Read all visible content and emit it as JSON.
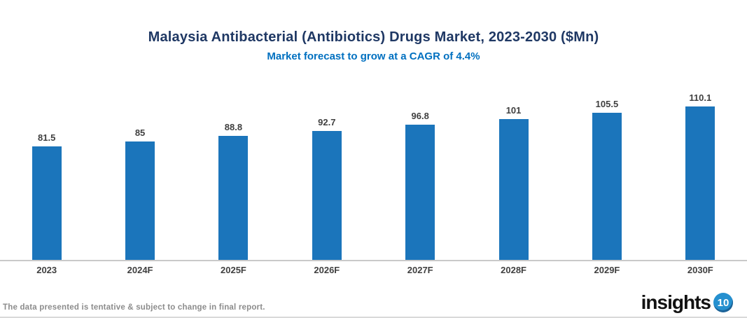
{
  "header": {
    "title": "Malaysia Antibacterial (Antibiotics) Drugs Market, 2023-2030 ($Mn)",
    "subtitle": "Market forecast to grow at a CAGR of 4.4%"
  },
  "chart_data": {
    "type": "bar",
    "title": "Malaysia Antibacterial (Antibiotics) Drugs Market, 2023-2030 ($Mn)",
    "subtitle": "Market forecast to grow at a CAGR of 4.4%",
    "categories": [
      "2023",
      "2024F",
      "2025F",
      "2026F",
      "2027F",
      "2028F",
      "2029F",
      "2030F"
    ],
    "values": [
      81.5,
      85,
      88.8,
      92.7,
      96.8,
      101,
      105.5,
      110.1
    ],
    "xlabel": "",
    "ylabel": "",
    "ylim": [
      0,
      120
    ],
    "grid": false,
    "legend": "none",
    "value_labels_shown": true,
    "bar_color": "#1b75bb"
  },
  "footer": {
    "disclaimer": "The data presented is tentative & subject to change in final report.",
    "logo_text": "insights",
    "logo_badge": "10"
  },
  "colors": {
    "title_text": "#1f3864",
    "subtitle_text": "#0070c0",
    "bar": "#1b75bb",
    "labels": "#404040",
    "axis_line": "#c9c9c9",
    "disclaimer_text": "#8c8c8c",
    "logo_badge_bg": "#2590cf"
  }
}
